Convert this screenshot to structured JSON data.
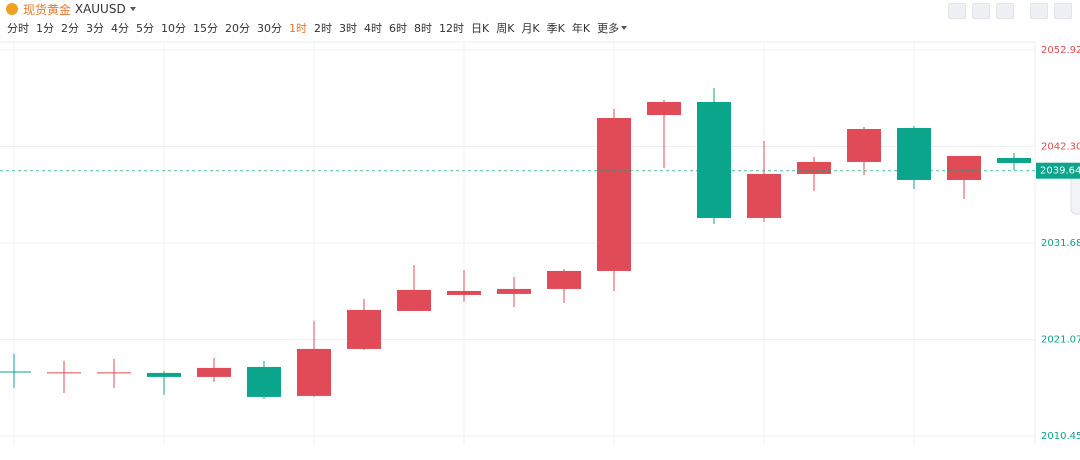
{
  "header": {
    "title": "现货黄金",
    "symbol": "XAUUSD",
    "periods": [
      "分时",
      "1分",
      "2分",
      "3分",
      "4分",
      "5分",
      "10分",
      "15分",
      "20分",
      "30分",
      "1时",
      "2时",
      "3时",
      "4时",
      "6时",
      "8时",
      "12时",
      "日K",
      "周K",
      "月K",
      "季K",
      "年K",
      "更多"
    ],
    "selected_period_index": 10
  },
  "chart_data": {
    "type": "candlestick",
    "open": [
      2017.55,
      2017.35,
      2017.35,
      2017.39,
      2016.95,
      2018.05,
      2014.86,
      2020.03,
      2024.21,
      2025.97,
      2026.08,
      2026.63,
      2028.61,
      2045.77,
      2047.2,
      2034.44,
      2039.28,
      2040.6,
      2044.34,
      2038.62,
      2041.04
    ],
    "high": [
      2019.48,
      2018.71,
      2018.93,
      2017.61,
      2019.04,
      2018.71,
      2023.11,
      2025.53,
      2029.27,
      2028.72,
      2027.95,
      2028.83,
      2046.43,
      2047.42,
      2048.74,
      2042.91,
      2041.15,
      2044.45,
      2044.56,
      2041.26,
      2041.59
    ],
    "low": [
      2015.74,
      2015.19,
      2015.74,
      2014.97,
      2016.4,
      2014.53,
      2014.75,
      2019.92,
      2024.21,
      2025.2,
      2024.65,
      2025.09,
      2026.41,
      2039.94,
      2033.78,
      2034.0,
      2037.41,
      2039.17,
      2037.63,
      2036.53,
      2039.72
    ],
    "close": [
      2017.45,
      2017.45,
      2017.45,
      2016.95,
      2017.94,
      2014.75,
      2020.03,
      2024.32,
      2026.52,
      2026.41,
      2026.63,
      2028.61,
      2045.44,
      2047.2,
      2034.44,
      2039.28,
      2040.6,
      2044.23,
      2038.62,
      2041.26,
      2040.49
    ],
    "up_color": "#e04b57",
    "down_color": "#0aa58a",
    "last_price": 2039.64,
    "ylim": [
      2009.46,
      2053.8
    ],
    "yticks": [
      2052.92,
      {
        "value": 2042.3,
        "label": "2042.30"
      },
      2031.68,
      2021.07,
      2010.45
    ],
    "grid": true
  }
}
